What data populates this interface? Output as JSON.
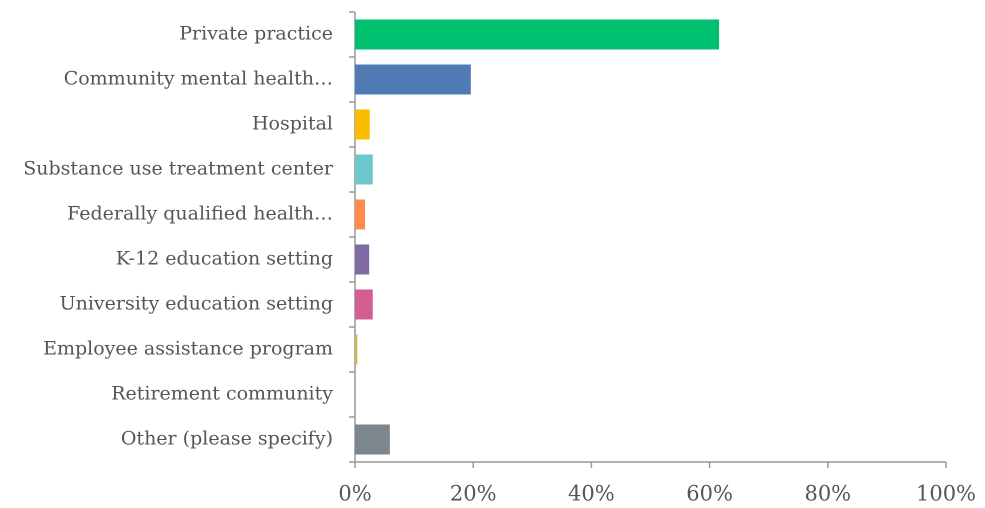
{
  "chart_data": {
    "type": "bar",
    "orientation": "horizontal",
    "categories": [
      "Private practice",
      "Community mental health…",
      "Hospital",
      "Substance use treatment center",
      "Federally qualified health…",
      "K-12 education setting",
      "University education setting",
      "Employee assistance program",
      "Retirement community",
      "Other (please specify)"
    ],
    "values": [
      61.6,
      19.6,
      2.5,
      3.0,
      1.7,
      2.4,
      3.0,
      0.4,
      0,
      5.9
    ],
    "colors": [
      "#00bf6f",
      "#507cb6",
      "#f9be00",
      "#6bc8cd",
      "#ff8b4f",
      "#7f6aa2",
      "#d25f90",
      "#d1b84d",
      null,
      "#7d868c"
    ],
    "xlim": [
      0,
      100
    ],
    "xticks": [
      {
        "value": 0,
        "label": "0%"
      },
      {
        "value": 20,
        "label": "20%"
      },
      {
        "value": 40,
        "label": "40%"
      },
      {
        "value": 60,
        "label": "60%"
      },
      {
        "value": 80,
        "label": "80%"
      },
      {
        "value": 100,
        "label": "100%"
      }
    ],
    "grid": false
  }
}
